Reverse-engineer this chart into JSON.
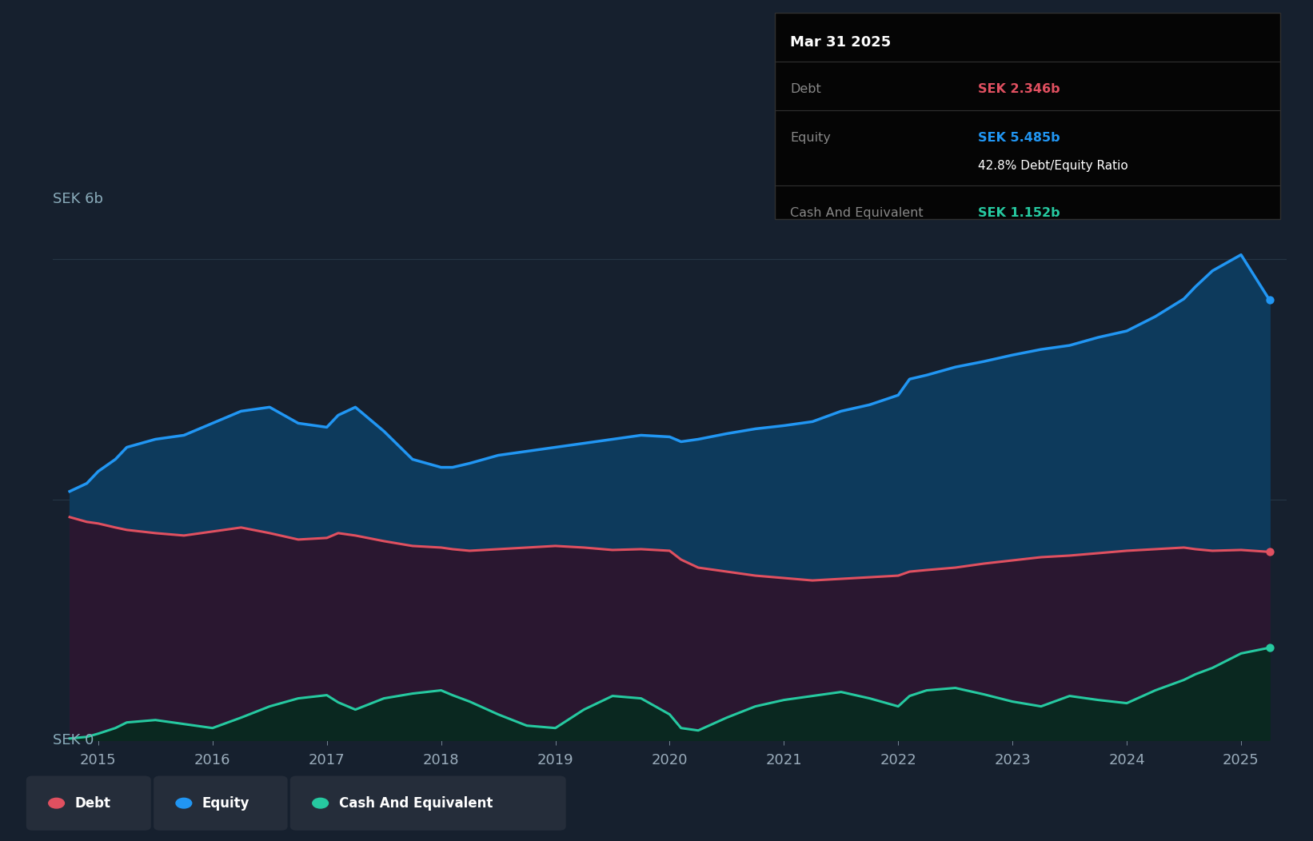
{
  "bg_color": "#16202E",
  "plot_bg_color": "#16202E",
  "ylabel": "SEK 6b",
  "y0label": "SEK 0",
  "x_years": [
    2014.75,
    2014.9,
    2015.0,
    2015.15,
    2015.25,
    2015.5,
    2015.75,
    2016.0,
    2016.25,
    2016.5,
    2016.75,
    2017.0,
    2017.1,
    2017.25,
    2017.5,
    2017.75,
    2018.0,
    2018.1,
    2018.25,
    2018.5,
    2018.75,
    2019.0,
    2019.25,
    2019.5,
    2019.75,
    2020.0,
    2020.1,
    2020.25,
    2020.5,
    2020.75,
    2021.0,
    2021.25,
    2021.5,
    2021.75,
    2022.0,
    2022.1,
    2022.25,
    2022.5,
    2022.75,
    2023.0,
    2023.25,
    2023.5,
    2023.75,
    2024.0,
    2024.25,
    2024.5,
    2024.6,
    2024.75,
    2025.0,
    2025.25
  ],
  "equity": [
    3.1,
    3.2,
    3.35,
    3.5,
    3.65,
    3.75,
    3.8,
    3.95,
    4.1,
    4.15,
    3.95,
    3.9,
    4.05,
    4.15,
    3.85,
    3.5,
    3.4,
    3.4,
    3.45,
    3.55,
    3.6,
    3.65,
    3.7,
    3.75,
    3.8,
    3.78,
    3.72,
    3.75,
    3.82,
    3.88,
    3.92,
    3.97,
    4.1,
    4.18,
    4.3,
    4.5,
    4.55,
    4.65,
    4.72,
    4.8,
    4.87,
    4.92,
    5.02,
    5.1,
    5.28,
    5.5,
    5.65,
    5.85,
    6.05,
    5.485
  ],
  "debt": [
    2.78,
    2.72,
    2.7,
    2.65,
    2.62,
    2.58,
    2.55,
    2.6,
    2.65,
    2.58,
    2.5,
    2.52,
    2.58,
    2.55,
    2.48,
    2.42,
    2.4,
    2.38,
    2.36,
    2.38,
    2.4,
    2.42,
    2.4,
    2.37,
    2.38,
    2.36,
    2.25,
    2.15,
    2.1,
    2.05,
    2.02,
    1.99,
    2.01,
    2.03,
    2.05,
    2.1,
    2.12,
    2.15,
    2.2,
    2.24,
    2.28,
    2.3,
    2.33,
    2.36,
    2.38,
    2.4,
    2.38,
    2.36,
    2.37,
    2.346
  ],
  "cash": [
    0.02,
    0.04,
    0.08,
    0.15,
    0.22,
    0.25,
    0.2,
    0.15,
    0.28,
    0.42,
    0.52,
    0.56,
    0.47,
    0.38,
    0.52,
    0.58,
    0.62,
    0.56,
    0.48,
    0.32,
    0.18,
    0.15,
    0.38,
    0.55,
    0.52,
    0.32,
    0.15,
    0.12,
    0.28,
    0.42,
    0.5,
    0.55,
    0.6,
    0.52,
    0.42,
    0.55,
    0.62,
    0.65,
    0.57,
    0.48,
    0.42,
    0.55,
    0.5,
    0.46,
    0.62,
    0.75,
    0.82,
    0.9,
    1.08,
    1.152
  ],
  "equity_color": "#2196F3",
  "debt_color": "#E05060",
  "cash_color": "#26C9A0",
  "equity_fill_top": "#0D3A5C",
  "equity_fill_bot": "#0A2540",
  "debt_fill": "#2A1730",
  "cash_fill": "#0A2820",
  "grid_color": "#263545",
  "tooltip_bg": "#050505",
  "tooltip_border": "#303030",
  "x_tick_labels": [
    "2015",
    "2016",
    "2017",
    "2018",
    "2019",
    "2020",
    "2021",
    "2022",
    "2023",
    "2024",
    "2025"
  ],
  "x_tick_positions": [
    2015,
    2016,
    2017,
    2018,
    2019,
    2020,
    2021,
    2022,
    2023,
    2024,
    2025
  ],
  "ylim": [
    0,
    6.5
  ],
  "xlim": [
    2014.6,
    2025.4
  ]
}
